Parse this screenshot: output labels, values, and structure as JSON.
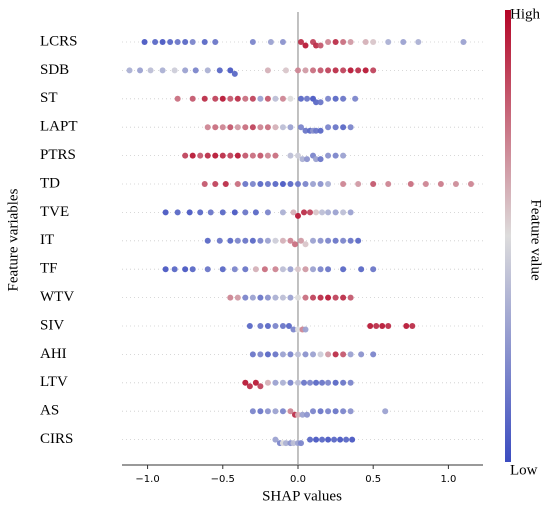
{
  "chart_data": {
    "type": "beeswarm",
    "xlabel": "SHAP values",
    "ylabel": "Feature variables",
    "xlim": [
      -1.17,
      1.23
    ],
    "xticks": [
      {
        "value": -1,
        "label": "−1.0"
      },
      {
        "value": -0.5,
        "label": "−0.5"
      },
      {
        "value": 0,
        "label": "0.0"
      },
      {
        "value": 0.5,
        "label": "0.5"
      },
      {
        "value": 1,
        "label": "1.0"
      }
    ],
    "colorbar": {
      "label": "Feature value",
      "high": "High",
      "low": "Low",
      "colors": [
        "#3b4cc0",
        "#dddcdc",
        "#b40426"
      ]
    },
    "features": [
      {
        "name": "LCRS",
        "shap": [
          -1.02,
          -0.95,
          -0.9,
          -0.85,
          -0.8,
          -0.75,
          -0.7,
          -0.62,
          -0.55,
          -0.3,
          -0.18,
          -0.1,
          0.02,
          0.05,
          0.1,
          0.12,
          0.15,
          0.2,
          0.25,
          0.3,
          0.35,
          0.45,
          0.5,
          0.6,
          0.7,
          0.8,
          1.1
        ],
        "feature_value": [
          0.05,
          0.1,
          0.05,
          0.1,
          0.15,
          0.1,
          0.2,
          0.1,
          0.15,
          0.2,
          0.3,
          0.25,
          0.9,
          0.95,
          0.85,
          0.9,
          0.8,
          0.7,
          0.9,
          0.75,
          0.65,
          0.6,
          0.55,
          0.35,
          0.3,
          0.35,
          0.3
        ]
      },
      {
        "name": "SDB",
        "shap": [
          -1.12,
          -1.05,
          -0.98,
          -0.9,
          -0.82,
          -0.75,
          -0.68,
          -0.6,
          -0.52,
          -0.45,
          -0.42,
          -0.2,
          -0.08,
          0.0,
          0.05,
          0.1,
          0.15,
          0.2,
          0.25,
          0.3,
          0.35,
          0.4,
          0.45,
          0.5
        ],
        "feature_value": [
          0.35,
          0.3,
          0.4,
          0.35,
          0.45,
          0.3,
          0.2,
          0.35,
          0.1,
          0.05,
          0.1,
          0.6,
          0.55,
          0.7,
          0.65,
          0.75,
          0.8,
          0.85,
          0.9,
          0.85,
          0.95,
          0.9,
          0.95,
          0.85
        ]
      },
      {
        "name": "ST",
        "shap": [
          -0.8,
          -0.7,
          -0.62,
          -0.55,
          -0.5,
          -0.45,
          -0.4,
          -0.35,
          -0.3,
          -0.25,
          -0.2,
          -0.15,
          -0.1,
          -0.05,
          0.02,
          0.06,
          0.1,
          0.12,
          0.15,
          0.2,
          0.25,
          0.3,
          0.38
        ],
        "feature_value": [
          0.75,
          0.8,
          0.9,
          0.85,
          0.95,
          0.8,
          0.9,
          0.75,
          0.85,
          0.3,
          0.8,
          0.4,
          0.7,
          0.5,
          0.1,
          0.15,
          0.05,
          0.1,
          0.15,
          0.2,
          0.1,
          0.15,
          0.2
        ]
      },
      {
        "name": "LAPT",
        "shap": [
          -0.6,
          -0.55,
          -0.5,
          -0.45,
          -0.4,
          -0.35,
          -0.3,
          -0.25,
          -0.2,
          -0.15,
          -0.1,
          -0.05,
          0.02,
          0.05,
          0.08,
          0.1,
          0.12,
          0.15,
          0.2,
          0.25,
          0.3,
          0.35
        ],
        "feature_value": [
          0.7,
          0.75,
          0.7,
          0.8,
          0.65,
          0.75,
          0.85,
          0.7,
          0.75,
          0.6,
          0.4,
          0.3,
          0.2,
          0.15,
          0.1,
          0.25,
          0.15,
          0.1,
          0.2,
          0.15,
          0.1,
          0.2
        ]
      },
      {
        "name": "PTRS",
        "shap": [
          -0.75,
          -0.7,
          -0.65,
          -0.6,
          -0.55,
          -0.5,
          -0.45,
          -0.4,
          -0.35,
          -0.3,
          -0.25,
          -0.2,
          -0.15,
          -0.05,
          0.0,
          0.03,
          0.06,
          0.1,
          0.12,
          0.15,
          0.2,
          0.25,
          0.3
        ],
        "feature_value": [
          0.85,
          0.95,
          0.8,
          0.9,
          0.95,
          0.9,
          0.85,
          0.95,
          0.8,
          0.75,
          0.8,
          0.7,
          0.75,
          0.4,
          0.45,
          0.35,
          0.25,
          0.2,
          0.3,
          0.15,
          0.25,
          0.2,
          0.3
        ]
      },
      {
        "name": "TD",
        "shap": [
          -0.62,
          -0.55,
          -0.48,
          -0.4,
          -0.35,
          -0.3,
          -0.25,
          -0.2,
          -0.15,
          -0.1,
          -0.05,
          0.0,
          0.05,
          0.1,
          0.15,
          0.2,
          0.3,
          0.4,
          0.5,
          0.6,
          0.75,
          0.85,
          0.95,
          1.05,
          1.15
        ],
        "feature_value": [
          0.8,
          0.85,
          0.9,
          0.75,
          0.15,
          0.2,
          0.1,
          0.15,
          0.1,
          0.05,
          0.1,
          0.15,
          0.2,
          0.3,
          0.25,
          0.35,
          0.7,
          0.65,
          0.8,
          0.7,
          0.75,
          0.7,
          0.72,
          0.68,
          0.7
        ]
      },
      {
        "name": "TVE",
        "shap": [
          -0.88,
          -0.8,
          -0.72,
          -0.65,
          -0.58,
          -0.5,
          -0.42,
          -0.35,
          -0.28,
          -0.2,
          -0.1,
          -0.03,
          0.0,
          0.04,
          0.08,
          0.12,
          0.16,
          0.2,
          0.25,
          0.3,
          0.35
        ],
        "feature_value": [
          0.05,
          0.1,
          0.05,
          0.1,
          0.15,
          0.1,
          0.05,
          0.15,
          0.1,
          0.2,
          0.35,
          0.6,
          0.95,
          0.9,
          0.85,
          0.55,
          0.4,
          0.35,
          0.3,
          0.4,
          0.3
        ]
      },
      {
        "name": "IT",
        "shap": [
          -0.6,
          -0.52,
          -0.45,
          -0.4,
          -0.35,
          -0.3,
          -0.25,
          -0.2,
          -0.15,
          -0.1,
          -0.05,
          -0.02,
          0.02,
          0.05,
          0.1,
          0.15,
          0.2,
          0.25,
          0.3,
          0.35,
          0.4
        ],
        "feature_value": [
          0.1,
          0.15,
          0.1,
          0.2,
          0.15,
          0.1,
          0.2,
          0.3,
          0.45,
          0.6,
          0.7,
          0.75,
          0.65,
          0.55,
          0.3,
          0.25,
          0.2,
          0.15,
          0.2,
          0.15,
          0.1
        ]
      },
      {
        "name": "TF",
        "shap": [
          -0.88,
          -0.82,
          -0.75,
          -0.7,
          -0.6,
          -0.5,
          -0.42,
          -0.35,
          -0.28,
          -0.22,
          -0.15,
          -0.1,
          -0.05,
          0.0,
          0.05,
          0.1,
          0.15,
          0.2,
          0.3,
          0.42,
          0.5
        ],
        "feature_value": [
          0.05,
          0.1,
          0.05,
          0.1,
          0.15,
          0.1,
          0.2,
          0.15,
          0.6,
          0.75,
          0.7,
          0.4,
          0.3,
          0.55,
          0.65,
          0.3,
          0.2,
          0.15,
          0.1,
          0.1,
          0.15
        ]
      },
      {
        "name": "WTV",
        "shap": [
          -0.45,
          -0.4,
          -0.35,
          -0.3,
          -0.25,
          -0.2,
          -0.15,
          -0.1,
          -0.05,
          0.0,
          0.05,
          0.1,
          0.15,
          0.2,
          0.25,
          0.3,
          0.35
        ],
        "feature_value": [
          0.7,
          0.65,
          0.2,
          0.3,
          0.15,
          0.25,
          0.35,
          0.4,
          0.3,
          0.5,
          0.75,
          0.85,
          0.9,
          0.95,
          0.85,
          0.9,
          0.8
        ]
      },
      {
        "name": "SIV",
        "shap": [
          -0.32,
          -0.25,
          -0.2,
          -0.15,
          -0.1,
          -0.06,
          -0.03,
          0.0,
          0.03,
          0.05,
          0.48,
          0.52,
          0.56,
          0.6,
          0.72,
          0.76
        ],
        "feature_value": [
          0.1,
          0.15,
          0.1,
          0.2,
          0.15,
          0.1,
          0.2,
          0.5,
          0.7,
          0.3,
          0.95,
          0.9,
          0.95,
          0.9,
          0.95,
          0.9
        ]
      },
      {
        "name": "AHI",
        "shap": [
          -0.3,
          -0.25,
          -0.2,
          -0.15,
          -0.1,
          -0.05,
          0.0,
          0.05,
          0.1,
          0.15,
          0.2,
          0.25,
          0.3,
          0.35,
          0.42,
          0.5
        ],
        "feature_value": [
          0.15,
          0.2,
          0.1,
          0.15,
          0.3,
          0.2,
          0.4,
          0.25,
          0.3,
          0.45,
          0.65,
          0.9,
          0.8,
          0.3,
          0.25,
          0.2
        ]
      },
      {
        "name": "LTV",
        "shap": [
          -0.35,
          -0.32,
          -0.28,
          -0.25,
          -0.2,
          -0.15,
          -0.1,
          -0.05,
          0.0,
          0.04,
          0.08,
          0.12,
          0.16,
          0.2,
          0.25,
          0.3,
          0.35
        ],
        "feature_value": [
          0.95,
          0.9,
          0.95,
          0.85,
          0.6,
          0.3,
          0.35,
          0.2,
          0.4,
          0.15,
          0.2,
          0.1,
          0.15,
          0.2,
          0.1,
          0.15,
          0.2
        ]
      },
      {
        "name": "AS",
        "shap": [
          -0.3,
          -0.25,
          -0.2,
          -0.15,
          -0.1,
          -0.05,
          -0.02,
          0.0,
          0.03,
          0.06,
          0.1,
          0.15,
          0.2,
          0.25,
          0.3,
          0.35,
          0.58
        ],
        "feature_value": [
          0.2,
          0.15,
          0.25,
          0.3,
          0.2,
          0.7,
          0.9,
          0.6,
          0.3,
          0.25,
          0.2,
          0.15,
          0.2,
          0.15,
          0.2,
          0.25,
          0.3
        ]
      },
      {
        "name": "CIRS",
        "shap": [
          -0.15,
          -0.12,
          -0.1,
          -0.08,
          -0.05,
          -0.03,
          0.0,
          0.02,
          0.08,
          0.12,
          0.16,
          0.2,
          0.24,
          0.28,
          0.32,
          0.36
        ],
        "feature_value": [
          0.3,
          0.2,
          0.5,
          0.35,
          0.25,
          0.4,
          0.3,
          0.2,
          0.1,
          0.05,
          0.1,
          0.05,
          0.1,
          0.05,
          0.1,
          0.05
        ]
      }
    ]
  }
}
